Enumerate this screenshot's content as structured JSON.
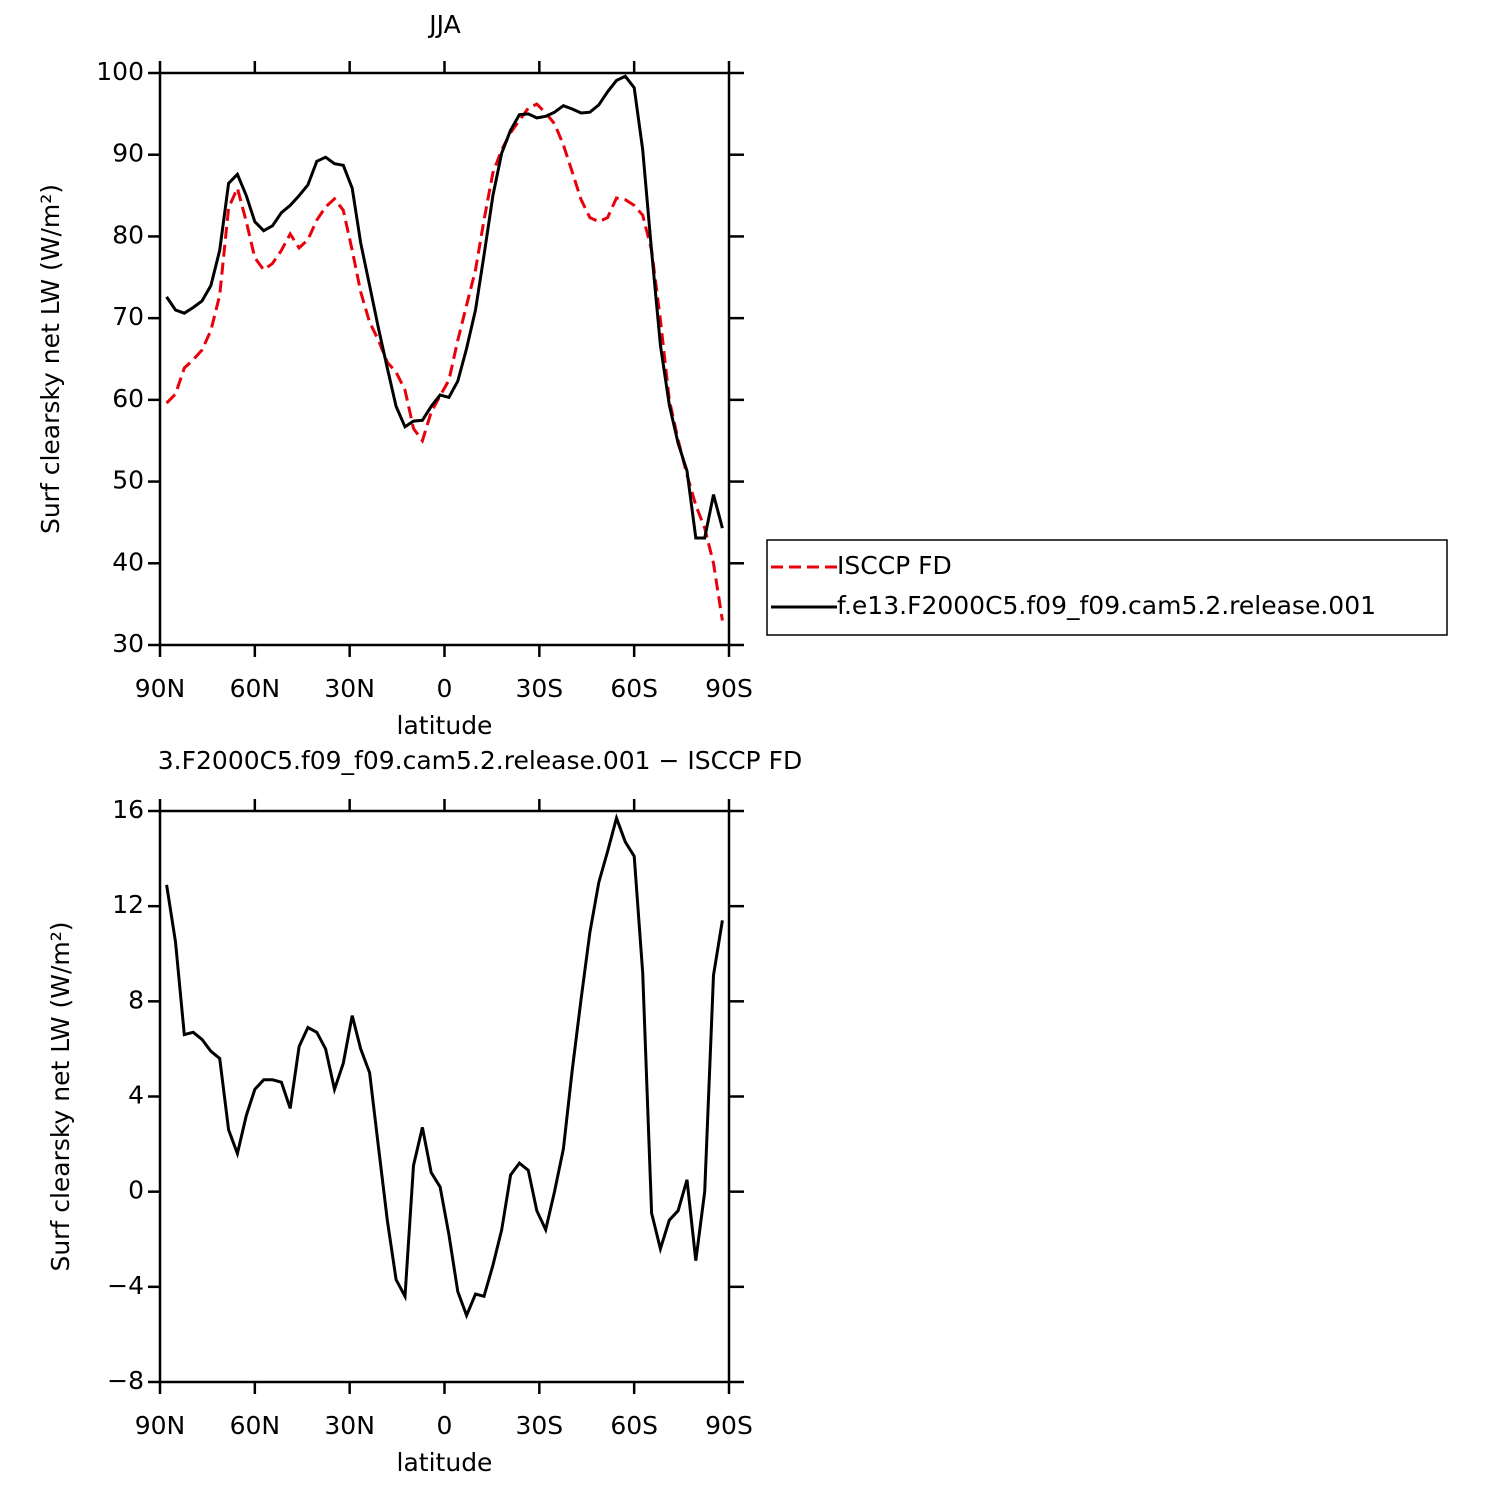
{
  "chart_data": [
    {
      "type": "line",
      "title": "JJA",
      "xlabel": "latitude",
      "ylabel": "Surf clearsky net LW (W/m²)",
      "x": [
        87.9,
        85.1,
        82.3,
        79.5,
        76.7,
        73.9,
        71.1,
        68.3,
        65.5,
        62.7,
        60.0,
        57.2,
        54.4,
        51.6,
        48.8,
        46.0,
        43.2,
        40.4,
        37.6,
        34.8,
        32.0,
        29.2,
        26.5,
        23.7,
        20.9,
        18.1,
        15.3,
        12.5,
        9.8,
        7.0,
        4.2,
        1.4,
        -1.4,
        -4.2,
        -7.0,
        -9.8,
        -12.5,
        -15.3,
        -18.1,
        -20.9,
        -23.7,
        -26.5,
        -29.2,
        -32.0,
        -34.8,
        -37.6,
        -40.4,
        -43.2,
        -46.0,
        -48.8,
        -51.6,
        -54.4,
        -57.2,
        -60.0,
        -62.7,
        -65.5,
        -68.3,
        -71.1,
        -73.9,
        -76.7,
        -79.5,
        -82.3,
        -85.1,
        -87.9
      ],
      "series": [
        {
          "name": "ISCCP FD",
          "color": "#e8000b",
          "line_style": "dashed",
          "values": [
            59.6,
            60.7,
            63.9,
            64.9,
            66.1,
            68.5,
            72.8,
            83.5,
            85.9,
            81.8,
            77.4,
            75.9,
            76.7,
            78.3,
            80.3,
            78.6,
            79.6,
            82.0,
            83.6,
            84.6,
            83.2,
            78.3,
            73.2,
            69.5,
            67.3,
            64.6,
            63.4,
            61.2,
            56.5,
            55.0,
            58.5,
            60.5,
            62.4,
            67.3,
            71.6,
            75.9,
            82.0,
            87.8,
            90.6,
            92.7,
            94.2,
            95.7,
            96.2,
            95.1,
            93.8,
            91.2,
            87.9,
            84.5,
            82.3,
            81.8,
            82.3,
            84.7,
            84.5,
            83.8,
            82.6,
            78.3,
            69.8,
            60.0,
            55.1,
            50.8,
            47.1,
            44.3,
            40.0,
            33.0
          ]
        },
        {
          "name": "f.e13.F2000C5.f09_f09.cam5.2.release.001",
          "color": "#000000",
          "line_style": "solid",
          "values": [
            72.6,
            71.0,
            70.6,
            71.3,
            72.1,
            74.0,
            78.3,
            86.5,
            87.6,
            85.0,
            81.8,
            80.7,
            81.3,
            82.9,
            83.8,
            85.0,
            86.3,
            89.2,
            89.7,
            88.9,
            88.7,
            85.9,
            79.2,
            74.0,
            68.8,
            63.9,
            59.2,
            56.7,
            57.4,
            57.5,
            59.2,
            60.6,
            60.3,
            62.3,
            66.3,
            71.0,
            77.7,
            85.0,
            90.2,
            93.0,
            94.9,
            95.0,
            94.5,
            94.7,
            95.2,
            96.0,
            95.6,
            95.1,
            95.2,
            96.1,
            97.7,
            99.1,
            99.6,
            98.2,
            90.6,
            78.2,
            66.7,
            59.4,
            54.7,
            51.3,
            43.1,
            43.1,
            48.4,
            44.3
          ]
        }
      ],
      "xlim": [
        90,
        -90
      ],
      "xticks": [
        {
          "value": 90,
          "label": "90N"
        },
        {
          "value": 60,
          "label": "60N"
        },
        {
          "value": 30,
          "label": "30N"
        },
        0,
        {
          "value": -30,
          "label": "30S"
        },
        {
          "value": -60,
          "label": "60S"
        },
        {
          "value": -90,
          "label": "90S"
        }
      ],
      "ylim": [
        30,
        100
      ],
      "yticks": [
        30,
        40,
        50,
        60,
        70,
        80,
        90,
        100
      ],
      "grid": false,
      "legend": "right"
    },
    {
      "type": "line",
      "title": "3.F2000C5.f09_f09.cam5.2.release.001 − ISCCP FD",
      "xlabel": "latitude",
      "ylabel": "Surf clearsky net LW (W/m²)",
      "x": [
        87.9,
        85.1,
        82.3,
        79.5,
        76.7,
        73.9,
        71.1,
        68.3,
        65.5,
        62.7,
        60.0,
        57.2,
        54.4,
        51.6,
        48.8,
        46.0,
        43.2,
        40.4,
        37.6,
        34.8,
        32.0,
        29.2,
        26.5,
        23.7,
        20.9,
        18.1,
        15.3,
        12.5,
        9.8,
        7.0,
        4.2,
        1.4,
        -1.4,
        -4.2,
        -7.0,
        -9.8,
        -12.5,
        -15.3,
        -18.1,
        -20.9,
        -23.7,
        -26.5,
        -29.2,
        -32.0,
        -34.8,
        -37.6,
        -40.4,
        -43.2,
        -46.0,
        -48.8,
        -51.6,
        -54.4,
        -57.2,
        -60.0,
        -62.7,
        -65.5,
        -68.3,
        -71.1,
        -73.9,
        -76.7,
        -79.5,
        -82.3,
        -85.1,
        -87.9
      ],
      "values": [
        12.9,
        10.5,
        6.6,
        6.7,
        6.4,
        5.9,
        5.6,
        2.6,
        1.6,
        3.2,
        4.3,
        4.7,
        4.7,
        4.6,
        3.5,
        6.1,
        6.9,
        6.7,
        6.0,
        4.3,
        5.4,
        7.4,
        6.0,
        5.0,
        1.9,
        -1.2,
        -3.7,
        -4.4,
        1.1,
        2.7,
        0.8,
        0.2,
        -1.8,
        -4.2,
        -5.2,
        -4.3,
        -4.4,
        -3.1,
        -1.6,
        0.7,
        1.2,
        0.9,
        -0.8,
        -1.6,
        0.0,
        1.8,
        5.1,
        8.1,
        10.9,
        13.0,
        14.3,
        15.7,
        14.7,
        14.1,
        9.2,
        -0.9,
        -2.4,
        -1.2,
        -0.8,
        0.5,
        -2.9,
        0.0,
        9.1,
        11.4
      ],
      "color": "#000000",
      "xlim": [
        90,
        -90
      ],
      "xticks": [
        {
          "value": 90,
          "label": "90N"
        },
        {
          "value": 60,
          "label": "60N"
        },
        {
          "value": 30,
          "label": "30N"
        },
        0,
        {
          "value": -30,
          "label": "30S"
        },
        {
          "value": -60,
          "label": "60S"
        },
        {
          "value": -90,
          "label": "90S"
        }
      ],
      "ylim": [
        -8,
        16
      ],
      "yticks": [
        {
          "value": -8,
          "label": "−8"
        },
        {
          "value": -4,
          "label": "−4"
        },
        0,
        4,
        8,
        12,
        16
      ],
      "grid": false
    }
  ]
}
